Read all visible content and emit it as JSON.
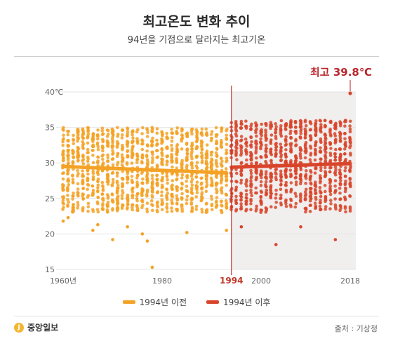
{
  "header": {
    "title": "최고온도 변화 추이",
    "subtitle": "94년을 기점으로 달라지는 최고기온"
  },
  "footer": {
    "brand": "중앙일보",
    "brand_mark": "J",
    "source": "출처 : 기상청"
  },
  "colors": {
    "before": "#f4a226",
    "after": "#d9452a",
    "shade": "#f1eeee",
    "marker": "#c0392b",
    "annotation": "#b8262c"
  },
  "chart_data": {
    "type": "scatter",
    "xlim": [
      1960,
      2018
    ],
    "ylim": [
      15,
      40
    ],
    "y_ticks": [
      {
        "value": 15,
        "label": "15"
      },
      {
        "value": 20,
        "label": "20"
      },
      {
        "value": 25,
        "label": "25"
      },
      {
        "value": 30,
        "label": "30"
      },
      {
        "value": 35,
        "label": "35"
      },
      {
        "value": 40,
        "label": "40℃"
      }
    ],
    "x_ticks": [
      {
        "value": 1960,
        "label": "1960년",
        "emphasis": false
      },
      {
        "value": 1980,
        "label": "1980",
        "emphasis": false
      },
      {
        "value": 1994,
        "label": "1994",
        "emphasis": true
      },
      {
        "value": 2000,
        "label": "2000",
        "emphasis": false
      },
      {
        "value": 2018,
        "label": "2018",
        "emphasis": false
      }
    ],
    "split_year": 1994,
    "shaded_range": [
      1994,
      2018
    ],
    "series": [
      {
        "name": "1994년 이전",
        "range": [
          1960,
          1993
        ],
        "typical_min": 23,
        "typical_max": 35,
        "trend": [
          [
            1960,
            29.5
          ],
          [
            1993,
            28.6
          ]
        ]
      },
      {
        "name": "1994년 이후",
        "range": [
          1994,
          2018
        ],
        "typical_min": 23,
        "typical_max": 36,
        "trend": [
          [
            1994,
            29.4
          ],
          [
            2018,
            29.9
          ]
        ]
      }
    ],
    "outliers": [
      {
        "x": 1960,
        "y": 21.8
      },
      {
        "x": 1961,
        "y": 22.3
      },
      {
        "x": 1966,
        "y": 20.5
      },
      {
        "x": 1967,
        "y": 21.3
      },
      {
        "x": 1970,
        "y": 19.2
      },
      {
        "x": 1973,
        "y": 21.0
      },
      {
        "x": 1976,
        "y": 20.0
      },
      {
        "x": 1977,
        "y": 19.0
      },
      {
        "x": 1978,
        "y": 15.3
      },
      {
        "x": 1985,
        "y": 20.2
      },
      {
        "x": 1993,
        "y": 20.5
      },
      {
        "x": 1996,
        "y": 21.0
      },
      {
        "x": 2003,
        "y": 18.5
      },
      {
        "x": 2008,
        "y": 21.0
      },
      {
        "x": 2015,
        "y": 19.2
      }
    ],
    "max_annotation": {
      "label": "최고 39.8℃",
      "x": 2018,
      "y": 39.8
    }
  },
  "legend": [
    {
      "label": "1994년 이전",
      "color": "#f4a226"
    },
    {
      "label": "1994년 이후",
      "color": "#d9452a"
    }
  ]
}
